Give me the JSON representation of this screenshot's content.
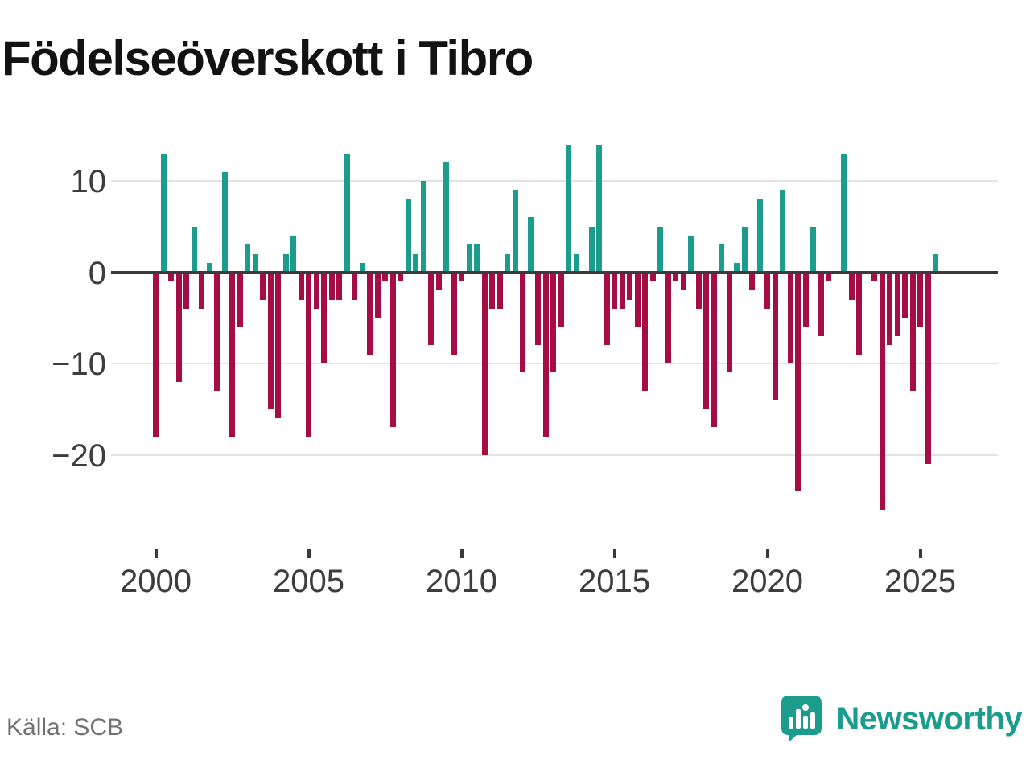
{
  "title": "Födelseöverskott i Tibro",
  "source_note": "Källa: SCB",
  "branding": {
    "name": "Newsworthy",
    "accent_color": "#1b9c8d"
  },
  "chart_data": {
    "type": "bar",
    "title": "Födelseöverskott i Tibro",
    "xlabel": "",
    "ylabel": "",
    "x_unit": "quarter",
    "quarter_order": [
      "Q1",
      "Q2",
      "Q3",
      "Q4"
    ],
    "years": [
      {
        "year": 2000,
        "q": [
          -18,
          13,
          -1,
          -12
        ]
      },
      {
        "year": 2001,
        "q": [
          -4,
          5,
          -4,
          1
        ]
      },
      {
        "year": 2002,
        "q": [
          -13,
          11,
          -18,
          -6
        ]
      },
      {
        "year": 2003,
        "q": [
          3,
          2,
          -3,
          -15
        ]
      },
      {
        "year": 2004,
        "q": [
          -16,
          2,
          4,
          -3
        ]
      },
      {
        "year": 2005,
        "q": [
          -18,
          -4,
          -10,
          -3
        ]
      },
      {
        "year": 2006,
        "q": [
          -3,
          13,
          -3,
          1
        ]
      },
      {
        "year": 2007,
        "q": [
          -9,
          -5,
          -1,
          -17
        ]
      },
      {
        "year": 2008,
        "q": [
          -1,
          8,
          2,
          10
        ]
      },
      {
        "year": 2009,
        "q": [
          -8,
          -2,
          12,
          -9
        ]
      },
      {
        "year": 2010,
        "q": [
          -1,
          3,
          3,
          -20
        ]
      },
      {
        "year": 2011,
        "q": [
          -4,
          -4,
          2,
          9
        ]
      },
      {
        "year": 2012,
        "q": [
          -11,
          6,
          -8,
          -18
        ]
      },
      {
        "year": 2013,
        "q": [
          -11,
          -6,
          14,
          2
        ]
      },
      {
        "year": 2014,
        "q": [
          0,
          5,
          14,
          -8
        ]
      },
      {
        "year": 2015,
        "q": [
          -4,
          -4,
          -3,
          -6
        ]
      },
      {
        "year": 2016,
        "q": [
          -13,
          -1,
          5,
          -10
        ]
      },
      {
        "year": 2017,
        "q": [
          -1,
          -2,
          4,
          -4
        ]
      },
      {
        "year": 2018,
        "q": [
          -15,
          -17,
          3,
          -11
        ]
      },
      {
        "year": 2019,
        "q": [
          1,
          5,
          -2,
          8
        ]
      },
      {
        "year": 2020,
        "q": [
          -4,
          -14,
          9,
          -10
        ]
      },
      {
        "year": 2021,
        "q": [
          -24,
          -6,
          5,
          -7
        ]
      },
      {
        "year": 2022,
        "q": [
          -1,
          0,
          13,
          -3
        ]
      },
      {
        "year": 2023,
        "q": [
          -9,
          0,
          -1,
          -26
        ]
      },
      {
        "year": 2024,
        "q": [
          -8,
          -7,
          -5,
          -13
        ]
      },
      {
        "year": 2025,
        "q": [
          -6,
          -21,
          2
        ]
      }
    ],
    "xticks": [
      "2000",
      "2005",
      "2010",
      "2015",
      "2020",
      "2025"
    ],
    "yticks": [
      10,
      0,
      -10,
      -20
    ],
    "ylim": [
      -27,
      15
    ],
    "grid": true,
    "legend": "none",
    "positive_color": "#1b9c8d",
    "negative_color": "#a50d44"
  }
}
